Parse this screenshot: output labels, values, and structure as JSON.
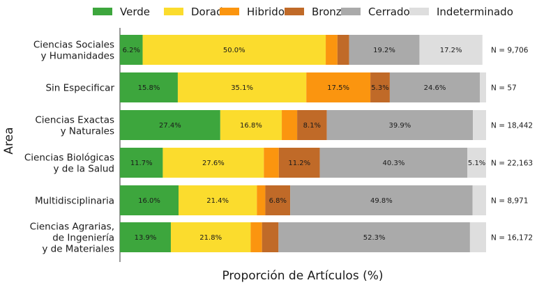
{
  "chart_data": {
    "type": "bar",
    "orientation": "horizontal-stacked",
    "xlabel": "Proporción de Artículos (%)",
    "ylabel": "Area",
    "xlim": [
      0,
      100
    ],
    "legend_position": "top",
    "series": [
      {
        "name": "Verde",
        "color": "#3da63d"
      },
      {
        "name": "Dorado",
        "color": "#fbdc2d"
      },
      {
        "name": "Hibrido",
        "color": "#fb950f"
      },
      {
        "name": "Bronze",
        "color": "#c06a28"
      },
      {
        "name": "Cerrado",
        "color": "#aaaaaa"
      },
      {
        "name": "Indeterminado",
        "color": "#dedede"
      }
    ],
    "categories": [
      {
        "name": "Ciencias Sociales y Humanidades",
        "label_lines": [
          "Ciencias Sociales",
          "y Humanidades"
        ],
        "n_label": "N = 9,706",
        "values": [
          6.2,
          50.0,
          3.2,
          3.2,
          19.2,
          17.2
        ],
        "labels": [
          "6.2%",
          "50.0%",
          "",
          "",
          "19.2%",
          "17.2%"
        ]
      },
      {
        "name": "Sin Especificar",
        "label_lines": [
          "Sin Especificar"
        ],
        "n_label": "N = 57",
        "values": [
          15.8,
          35.1,
          17.5,
          5.3,
          24.6,
          1.7
        ],
        "labels": [
          "15.8%",
          "35.1%",
          "17.5%",
          "5.3%",
          "24.6%",
          ""
        ]
      },
      {
        "name": "Ciencias Exactas y Naturales",
        "label_lines": [
          "Ciencias Exactas",
          "y Naturales"
        ],
        "n_label": "N = 18,442",
        "values": [
          27.4,
          16.8,
          4.2,
          8.1,
          39.9,
          3.6
        ],
        "labels": [
          "27.4%",
          "16.8%",
          "",
          "8.1%",
          "39.9%",
          ""
        ]
      },
      {
        "name": "Ciencias Biológicas y de la Salud",
        "label_lines": [
          "Ciencias Biológicas",
          "y de la Salud"
        ],
        "n_label": "N = 22,163",
        "values": [
          11.7,
          27.6,
          4.1,
          11.2,
          40.3,
          5.1
        ],
        "labels": [
          "11.7%",
          "27.6%",
          "",
          "11.2%",
          "40.3%",
          "5.1%"
        ]
      },
      {
        "name": "Multidisciplinaria",
        "label_lines": [
          "Multidisciplinaria"
        ],
        "n_label": "N = 8,971",
        "values": [
          16.0,
          21.4,
          2.3,
          6.8,
          49.8,
          3.7
        ],
        "labels": [
          "16.0%",
          "21.4%",
          "",
          "6.8%",
          "49.8%",
          ""
        ]
      },
      {
        "name": "Ciencias Agrarias, de Ingeniería y de Materiales",
        "label_lines": [
          "Ciencias Agrarias,",
          "de Ingeniería",
          "y de Materiales"
        ],
        "n_label": "N = 16,172",
        "values": [
          13.9,
          21.8,
          3.1,
          4.5,
          52.3,
          4.4
        ],
        "labels": [
          "13.9%",
          "21.8%",
          "",
          "",
          "52.3%",
          ""
        ]
      }
    ]
  }
}
